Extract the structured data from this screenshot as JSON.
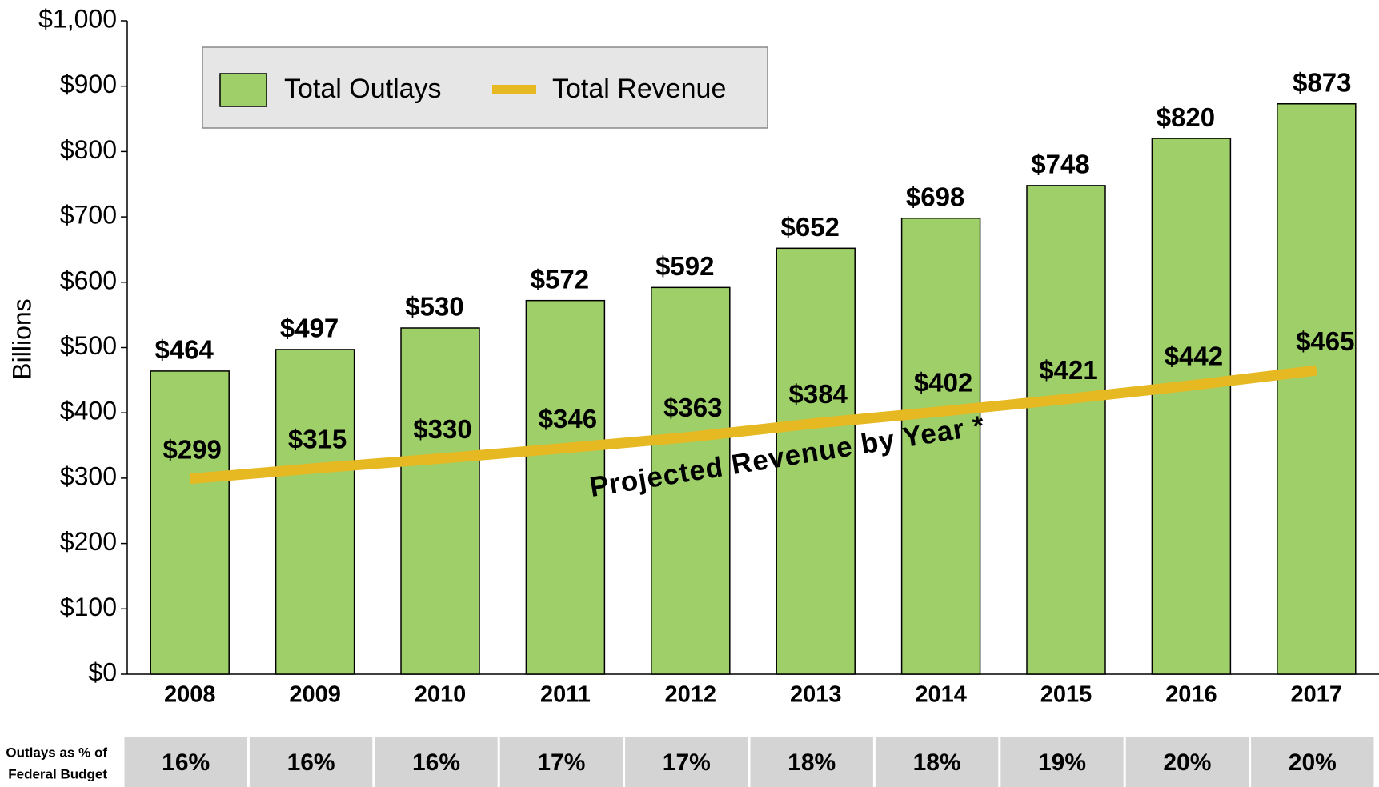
{
  "chart_data": {
    "type": "bar",
    "y_label": "Billions",
    "categories": [
      "2008",
      "2009",
      "2010",
      "2011",
      "2012",
      "2013",
      "2014",
      "2015",
      "2016",
      "2017"
    ],
    "series": [
      {
        "name": "Total Outlays",
        "type": "bar",
        "color": "#9fcf69",
        "values": [
          464,
          497,
          530,
          572,
          592,
          652,
          698,
          748,
          820,
          873
        ],
        "value_labels": [
          "$464",
          "$497",
          "$530",
          "$572",
          "$592",
          "$652",
          "$698",
          "$748",
          "$820",
          "$873"
        ]
      },
      {
        "name": "Total Revenue",
        "type": "line",
        "color": "#e6b923",
        "values": [
          299,
          315,
          330,
          346,
          363,
          384,
          402,
          421,
          442,
          465
        ],
        "value_labels": [
          "$299",
          "$315",
          "$330",
          "$346",
          "$363",
          "$384",
          "$402",
          "$421",
          "$442",
          "$465"
        ]
      }
    ],
    "ylim": [
      0,
      1000
    ],
    "yticks": [
      {
        "value": 0,
        "label": "$0"
      },
      {
        "value": 100,
        "label": "$100"
      },
      {
        "value": 200,
        "label": "$200"
      },
      {
        "value": 300,
        "label": "$300"
      },
      {
        "value": 400,
        "label": "$400"
      },
      {
        "value": 500,
        "label": "$500"
      },
      {
        "value": 600,
        "label": "$600"
      },
      {
        "value": 700,
        "label": "$700"
      },
      {
        "value": 800,
        "label": "$800"
      },
      {
        "value": 900,
        "label": "$900"
      },
      {
        "value": 1000,
        "label": "$1,000"
      }
    ],
    "legend": "top-left",
    "annotation": "Projected Revenue by Year *",
    "table": {
      "row_label": [
        "Outlays as % of",
        "Federal Budget"
      ],
      "values": [
        16,
        16,
        16,
        17,
        17,
        18,
        18,
        19,
        20,
        20
      ],
      "value_labels": [
        "16%",
        "16%",
        "16%",
        "17%",
        "17%",
        "18%",
        "18%",
        "19%",
        "20%",
        "20%"
      ]
    }
  }
}
